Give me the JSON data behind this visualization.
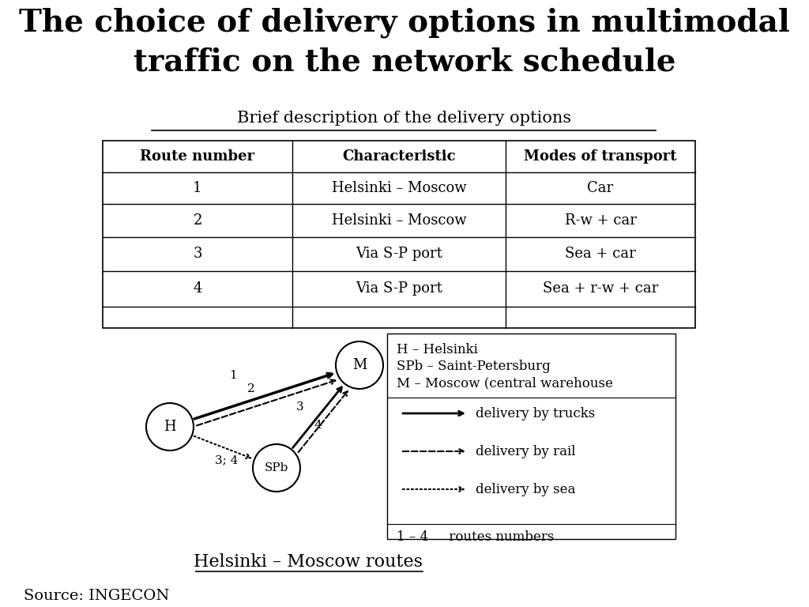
{
  "title_line1": "The choice of delivery options in multimodal",
  "title_line2": "traffic on the network schedule",
  "subtitle": "Brief description of the delivery options",
  "table_headers": [
    "Route number",
    "Characteristic",
    "Modes of transport"
  ],
  "table_rows": [
    [
      "1",
      "Helsinki – Moscow",
      "Car"
    ],
    [
      "2",
      "Helsinki – Moscow",
      "R-w + car"
    ],
    [
      "3",
      "Via S-P port",
      "Sea + car"
    ],
    [
      "4",
      "Via S-P port",
      "Sea + r-w + car"
    ]
  ],
  "legend_lines": [
    "H – Helsinki",
    "SPb – Saint-Petersburg",
    "M – Moscow (central warehouse"
  ],
  "legend_transport": [
    [
      "solid",
      "delivery by trucks"
    ],
    [
      "dashed",
      "delivery by rail"
    ],
    [
      "dotted",
      "delivery by sea"
    ]
  ],
  "legend_routes": "1 – 4     routes numbers",
  "diagram_caption": "Helsinki – Moscow routes",
  "source": "Source: INGECON",
  "bg_color": "#ffffff",
  "text_color": "#000000"
}
